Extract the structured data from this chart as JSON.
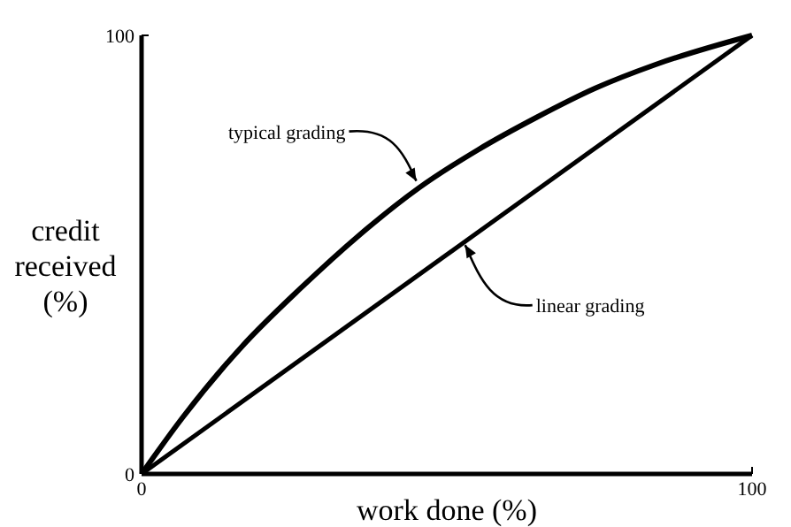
{
  "chart_data": {
    "type": "line",
    "xlabel": "work done (%)",
    "ylabel": "credit received (%)",
    "xlim": [
      0,
      100
    ],
    "ylim": [
      0,
      100
    ],
    "xticks": [
      0,
      100
    ],
    "yticks": [
      0,
      100
    ],
    "grid": false,
    "marker": "none",
    "line_style": "solid",
    "series": [
      {
        "color": "#000000",
        "x": [
          0,
          6.8,
          16.4,
          26.1,
          35.7,
          45.4,
          55.1,
          64.7,
          74.4,
          84.1,
          100
        ],
        "values": [
          0,
          13,
          29,
          42.4,
          54.5,
          65.2,
          73.9,
          81.3,
          88,
          93.3,
          100
        ]
      },
      {
        "color": "#000000",
        "x": [
          0,
          100
        ],
        "values": [
          0,
          100
        ]
      }
    ],
    "annotations": [
      {
        "text": "typical grading",
        "x": 45,
        "y": 66
      },
      {
        "text": "linear grading",
        "x": 53,
        "y": 53
      }
    ]
  }
}
